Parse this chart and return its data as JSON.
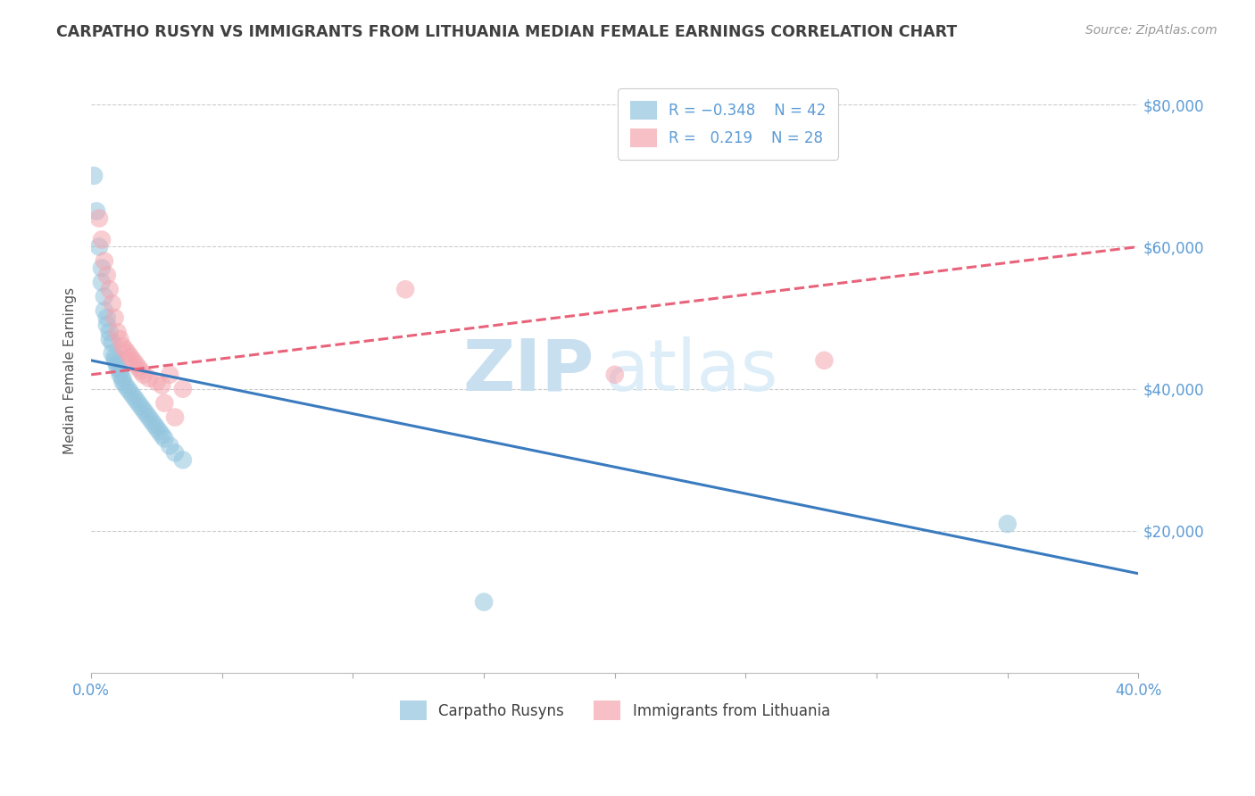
{
  "title": "CARPATHO RUSYN VS IMMIGRANTS FROM LITHUANIA MEDIAN FEMALE EARNINGS CORRELATION CHART",
  "source_text": "Source: ZipAtlas.com",
  "ylabel": "Median Female Earnings",
  "xlim": [
    0.0,
    0.4
  ],
  "ylim": [
    0,
    85000
  ],
  "yticks": [
    0,
    20000,
    40000,
    60000,
    80000
  ],
  "ytick_labels": [
    "",
    "$20,000",
    "$40,000",
    "$60,000",
    "$80,000"
  ],
  "xticks": [
    0.0,
    0.05,
    0.1,
    0.15,
    0.2,
    0.25,
    0.3,
    0.35,
    0.4
  ],
  "xtick_labels": [
    "0.0%",
    "",
    "",
    "",
    "",
    "",
    "",
    "",
    "40.0%"
  ],
  "blue_color": "#92c5de",
  "pink_color": "#f4a6b0",
  "blue_line_color": "#3a7bbf",
  "pink_line_color": "#e8637a",
  "title_color": "#404040",
  "axis_label_color": "#5b9bd5",
  "watermark_color": "#c8dff0",
  "label1": "Carpatho Rusyns",
  "label2": "Immigrants from Lithuania",
  "blue_x": [
    0.001,
    0.002,
    0.003,
    0.004,
    0.004,
    0.005,
    0.005,
    0.006,
    0.006,
    0.007,
    0.007,
    0.008,
    0.008,
    0.009,
    0.009,
    0.01,
    0.01,
    0.011,
    0.011,
    0.012,
    0.012,
    0.013,
    0.014,
    0.015,
    0.016,
    0.017,
    0.018,
    0.019,
    0.02,
    0.021,
    0.022,
    0.023,
    0.024,
    0.025,
    0.026,
    0.027,
    0.028,
    0.03,
    0.032,
    0.035,
    0.15,
    0.35
  ],
  "blue_y": [
    70000,
    65000,
    60000,
    57000,
    55000,
    53000,
    51000,
    50000,
    49000,
    48000,
    47000,
    46500,
    45000,
    44500,
    44000,
    43500,
    43000,
    42500,
    42000,
    41500,
    41000,
    40500,
    40000,
    39500,
    39000,
    38500,
    38000,
    37500,
    37000,
    36500,
    36000,
    35500,
    35000,
    34500,
    34000,
    33500,
    33000,
    32000,
    31000,
    30000,
    10000,
    21000
  ],
  "pink_x": [
    0.003,
    0.004,
    0.005,
    0.006,
    0.007,
    0.008,
    0.009,
    0.01,
    0.011,
    0.012,
    0.013,
    0.014,
    0.015,
    0.016,
    0.017,
    0.018,
    0.019,
    0.02,
    0.022,
    0.025,
    0.027,
    0.028,
    0.03,
    0.032,
    0.035,
    0.12,
    0.2,
    0.28
  ],
  "pink_y": [
    64000,
    61000,
    58000,
    56000,
    54000,
    52000,
    50000,
    48000,
    47000,
    46000,
    45500,
    45000,
    44500,
    44000,
    43500,
    43000,
    42500,
    42000,
    41500,
    41000,
    40500,
    38000,
    42000,
    36000,
    40000,
    54000,
    42000,
    44000
  ],
  "blue_trend_x": [
    0.0,
    0.4
  ],
  "blue_trend_y": [
    44000,
    14000
  ],
  "pink_trend_x": [
    0.0,
    0.4
  ],
  "pink_trend_y": [
    42000,
    60000
  ]
}
